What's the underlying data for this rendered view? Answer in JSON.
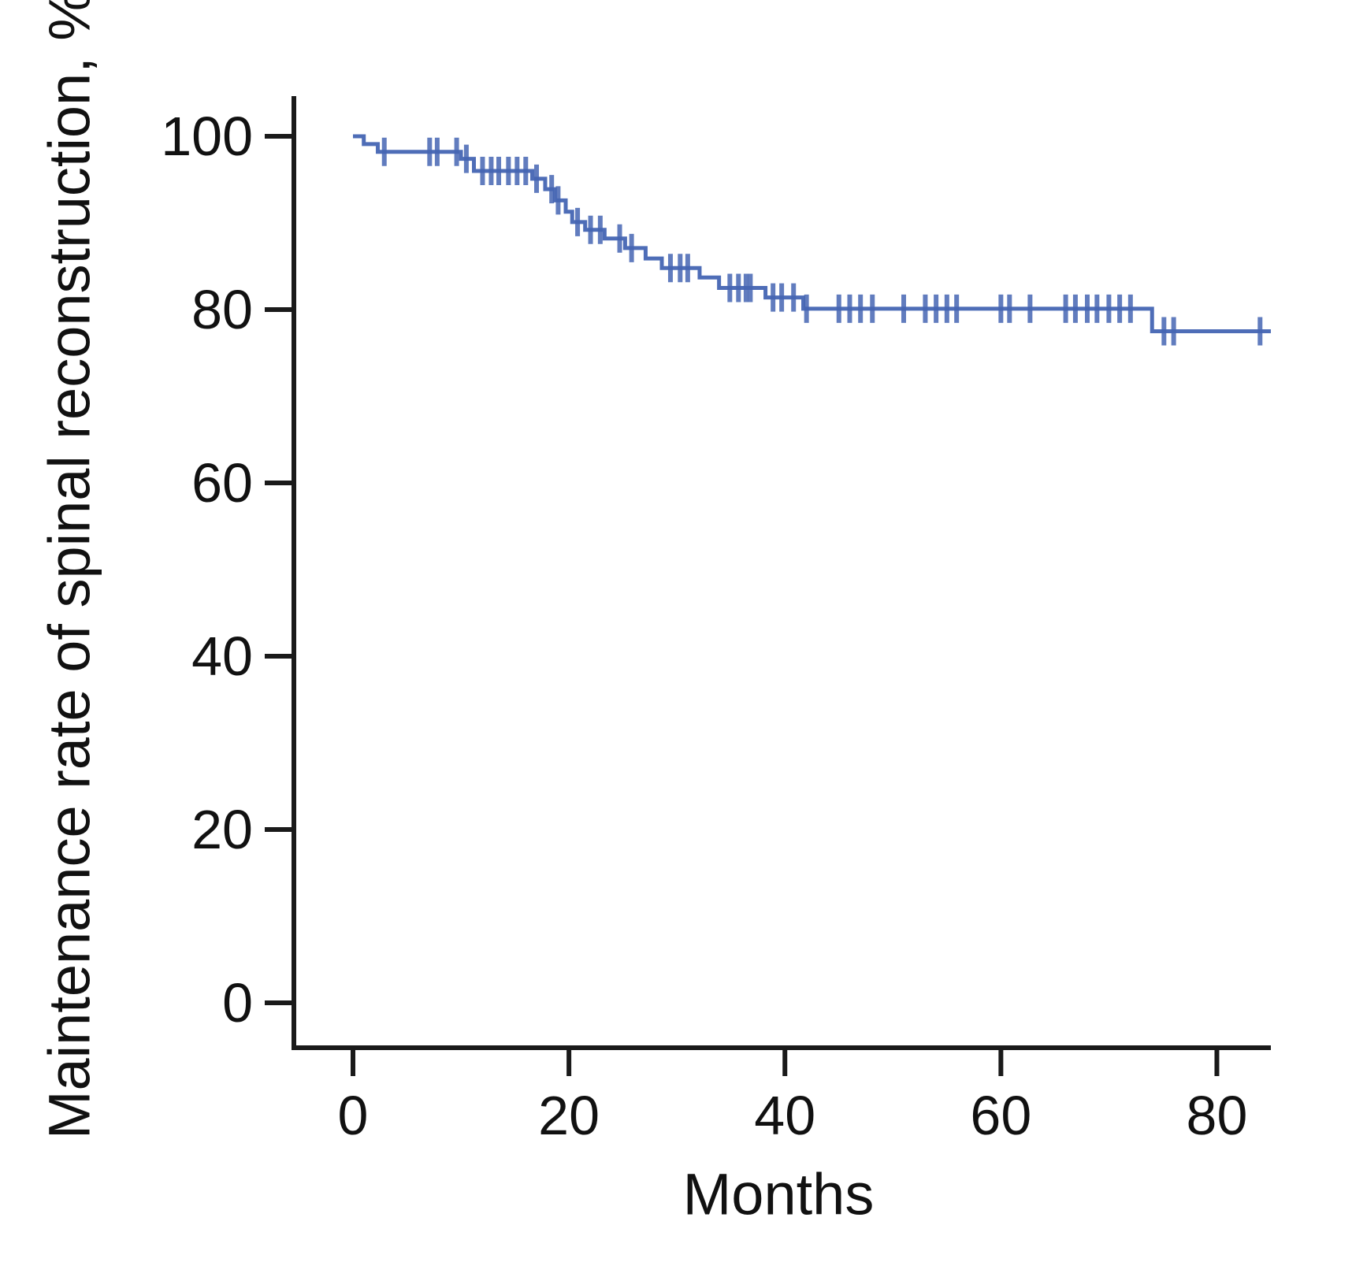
{
  "figure": {
    "background": "#ffffff"
  },
  "chart_data": {
    "type": "line",
    "subtype": "kaplan-meier-step-curve",
    "title": "",
    "xlabel": "Months",
    "ylabel": "Maintenance rate of spinal reconstruction, %",
    "xlim": [
      0,
      85
    ],
    "ylim": [
      0,
      100
    ],
    "x_ticks": [
      0,
      20,
      40,
      60,
      80
    ],
    "y_ticks": [
      100,
      80,
      60,
      40,
      20,
      0
    ],
    "grid": false,
    "legend": "none",
    "line_color": "#4565b3",
    "axis_color": "#1a1a1a",
    "tick_label_color": "#111111",
    "curve_end_x": 85,
    "steps": [
      {
        "t": 0,
        "s": 100.0
      },
      {
        "t": 1.0,
        "s": 99.1
      },
      {
        "t": 2.3,
        "s": 98.2
      },
      {
        "t": 10.0,
        "s": 97.4
      },
      {
        "t": 11.2,
        "s": 96.0
      },
      {
        "t": 16.6,
        "s": 95.1
      },
      {
        "t": 17.8,
        "s": 93.9
      },
      {
        "t": 18.7,
        "s": 92.6
      },
      {
        "t": 19.7,
        "s": 91.3
      },
      {
        "t": 20.3,
        "s": 90.1
      },
      {
        "t": 21.5,
        "s": 89.2
      },
      {
        "t": 23.3,
        "s": 88.2
      },
      {
        "t": 25.2,
        "s": 87.1
      },
      {
        "t": 27.1,
        "s": 85.9
      },
      {
        "t": 28.6,
        "s": 84.8
      },
      {
        "t": 32.1,
        "s": 83.7
      },
      {
        "t": 33.9,
        "s": 82.5
      },
      {
        "t": 38.2,
        "s": 81.4
      },
      {
        "t": 41.7,
        "s": 80.1
      },
      {
        "t": 74.0,
        "s": 77.5
      }
    ],
    "censor_marks": [
      {
        "t": 2.9,
        "s": 98.2
      },
      {
        "t": 7.1,
        "s": 98.2
      },
      {
        "t": 7.8,
        "s": 98.2
      },
      {
        "t": 9.6,
        "s": 98.2
      },
      {
        "t": 10.5,
        "s": 97.4
      },
      {
        "t": 12.0,
        "s": 96.0
      },
      {
        "t": 12.8,
        "s": 96.0
      },
      {
        "t": 13.5,
        "s": 96.0
      },
      {
        "t": 14.4,
        "s": 96.0
      },
      {
        "t": 15.2,
        "s": 96.0
      },
      {
        "t": 16.0,
        "s": 96.0
      },
      {
        "t": 17.0,
        "s": 95.1
      },
      {
        "t": 18.4,
        "s": 93.9
      },
      {
        "t": 19.0,
        "s": 92.6
      },
      {
        "t": 20.8,
        "s": 90.1
      },
      {
        "t": 22.0,
        "s": 89.2
      },
      {
        "t": 22.9,
        "s": 89.2
      },
      {
        "t": 24.7,
        "s": 88.2
      },
      {
        "t": 25.8,
        "s": 87.1
      },
      {
        "t": 29.4,
        "s": 84.8
      },
      {
        "t": 30.3,
        "s": 84.8
      },
      {
        "t": 31.0,
        "s": 84.8
      },
      {
        "t": 34.9,
        "s": 82.5
      },
      {
        "t": 35.7,
        "s": 82.5
      },
      {
        "t": 36.4,
        "s": 82.5
      },
      {
        "t": 36.8,
        "s": 82.5
      },
      {
        "t": 38.9,
        "s": 81.4
      },
      {
        "t": 39.7,
        "s": 81.4
      },
      {
        "t": 40.8,
        "s": 81.4
      },
      {
        "t": 42.0,
        "s": 80.1
      },
      {
        "t": 45.0,
        "s": 80.1
      },
      {
        "t": 46.0,
        "s": 80.1
      },
      {
        "t": 47.0,
        "s": 80.1
      },
      {
        "t": 48.1,
        "s": 80.1
      },
      {
        "t": 51.0,
        "s": 80.1
      },
      {
        "t": 53.0,
        "s": 80.1
      },
      {
        "t": 54.0,
        "s": 80.1
      },
      {
        "t": 55.0,
        "s": 80.1
      },
      {
        "t": 55.9,
        "s": 80.1
      },
      {
        "t": 60.0,
        "s": 80.1
      },
      {
        "t": 60.8,
        "s": 80.1
      },
      {
        "t": 62.7,
        "s": 80.1
      },
      {
        "t": 66.0,
        "s": 80.1
      },
      {
        "t": 66.9,
        "s": 80.1
      },
      {
        "t": 68.0,
        "s": 80.1
      },
      {
        "t": 68.9,
        "s": 80.1
      },
      {
        "t": 70.0,
        "s": 80.1
      },
      {
        "t": 71.0,
        "s": 80.1
      },
      {
        "t": 72.0,
        "s": 80.1
      },
      {
        "t": 75.1,
        "s": 77.5
      },
      {
        "t": 76.0,
        "s": 77.5
      },
      {
        "t": 84.0,
        "s": 77.5
      }
    ]
  }
}
